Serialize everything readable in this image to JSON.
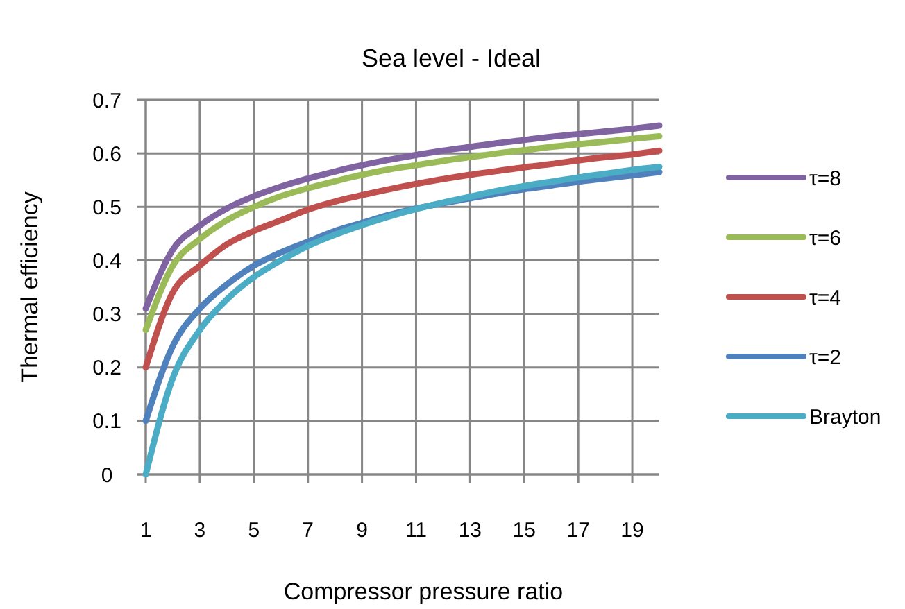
{
  "chart_data": {
    "type": "line",
    "title": "Sea level - Ideal",
    "xlabel": "Compressor pressure ratio",
    "ylabel": "Thermal efficiency",
    "x": [
      1,
      2,
      3,
      4,
      5,
      6,
      7,
      8,
      9,
      10,
      11,
      12,
      13,
      14,
      15,
      16,
      17,
      18,
      19,
      20
    ],
    "xlim": [
      1,
      20
    ],
    "xticks": [
      1,
      3,
      5,
      7,
      9,
      11,
      13,
      15,
      17,
      19
    ],
    "ylim": [
      0,
      0.7
    ],
    "yticks": [
      0,
      0.1,
      0.2,
      0.3,
      0.4,
      0.5,
      0.6,
      0.7
    ],
    "grid": true,
    "legend": "right",
    "marker": "none",
    "line_style": "solid",
    "series": [
      {
        "name": "τ=8",
        "color": "#8064a2",
        "values": [
          0.31,
          0.42,
          0.465,
          0.497,
          0.52,
          0.538,
          0.553,
          0.566,
          0.578,
          0.588,
          0.597,
          0.605,
          0.612,
          0.619,
          0.625,
          0.631,
          0.636,
          0.641,
          0.646,
          0.652
        ]
      },
      {
        "name": "τ=6",
        "color": "#9bbb59",
        "values": [
          0.27,
          0.39,
          0.44,
          0.475,
          0.5,
          0.52,
          0.535,
          0.548,
          0.56,
          0.57,
          0.578,
          0.586,
          0.593,
          0.6,
          0.606,
          0.612,
          0.617,
          0.622,
          0.627,
          0.632
        ]
      },
      {
        "name": "τ=4",
        "color": "#c0504d",
        "values": [
          0.2,
          0.34,
          0.39,
          0.43,
          0.455,
          0.475,
          0.495,
          0.51,
          0.522,
          0.533,
          0.543,
          0.552,
          0.56,
          0.567,
          0.574,
          0.58,
          0.587,
          0.593,
          0.598,
          0.605
        ]
      },
      {
        "name": "τ=2",
        "color": "#4f81bd",
        "values": [
          0.1,
          0.24,
          0.31,
          0.355,
          0.39,
          0.415,
          0.435,
          0.455,
          0.47,
          0.485,
          0.497,
          0.507,
          0.516,
          0.525,
          0.533,
          0.54,
          0.547,
          0.553,
          0.559,
          0.565
        ]
      },
      {
        "name": "Brayton",
        "color": "#4bacc6",
        "values": [
          0,
          0.18,
          0.27,
          0.327,
          0.369,
          0.4,
          0.427,
          0.448,
          0.466,
          0.482,
          0.496,
          0.508,
          0.519,
          0.53,
          0.539,
          0.547,
          0.555,
          0.562,
          0.569,
          0.575
        ]
      }
    ]
  }
}
